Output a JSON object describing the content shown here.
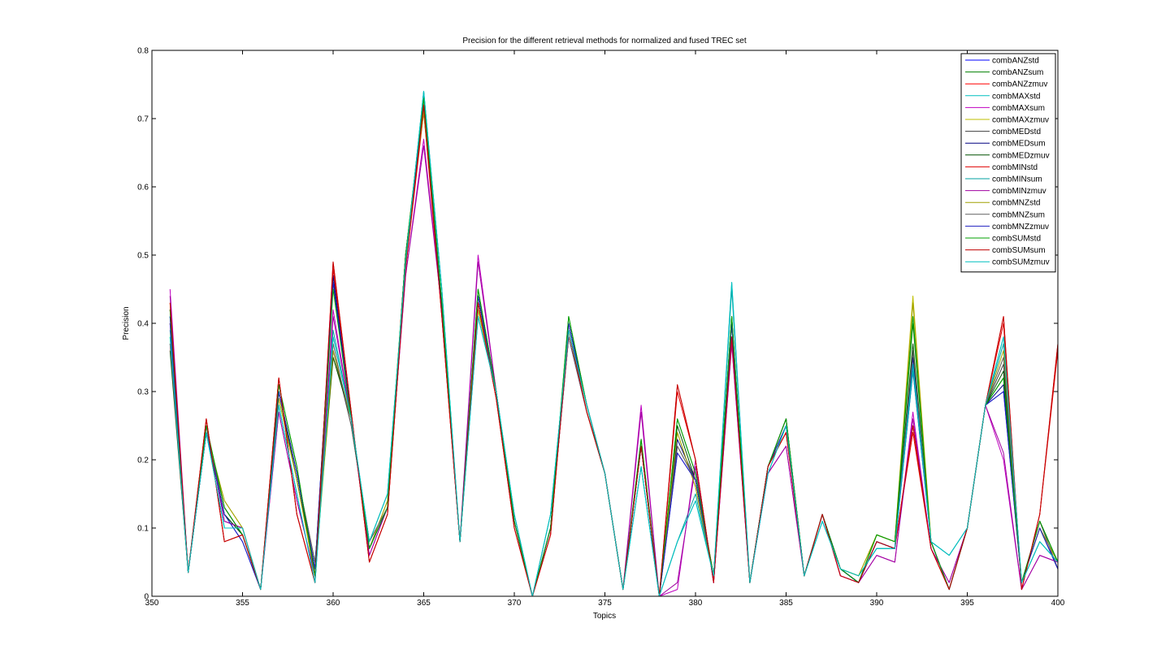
{
  "chart_data": {
    "type": "line",
    "title": "Precision for the different retrieval methods for normalized and fused TREC set",
    "xlabel": "Topics",
    "ylabel": "Precision",
    "xlim": [
      350,
      400
    ],
    "ylim": [
      0,
      0.8
    ],
    "xticks": [
      350,
      355,
      360,
      365,
      370,
      375,
      380,
      385,
      390,
      395,
      400
    ],
    "yticks": [
      0,
      0.1,
      0.2,
      0.3,
      0.4,
      0.5,
      0.6,
      0.7,
      0.8
    ],
    "grid": false,
    "legend_position": "top-right",
    "x": [
      351,
      352,
      353,
      354,
      355,
      356,
      357,
      358,
      359,
      360,
      361,
      362,
      363,
      364,
      365,
      366,
      367,
      368,
      369,
      370,
      371,
      372,
      373,
      374,
      375,
      376,
      377,
      378,
      379,
      380,
      381,
      382,
      383,
      384,
      385,
      386,
      387,
      388,
      389,
      390,
      391,
      392,
      393,
      394,
      395,
      396,
      397,
      398,
      399,
      400
    ],
    "series": [
      {
        "name": "combANZstd",
        "color": "#0000ff",
        "values": [
          0.41,
          0.035,
          0.24,
          0.12,
          0.08,
          0.01,
          0.3,
          0.18,
          0.04,
          0.47,
          0.26,
          0.07,
          0.13,
          0.5,
          0.72,
          0.42,
          0.08,
          0.44,
          0.3,
          0.11,
          0.0,
          0.1,
          0.4,
          0.28,
          0.18,
          0.01,
          0.22,
          0.0,
          0.21,
          0.17,
          0.03,
          0.4,
          0.02,
          0.19,
          0.25,
          0.03,
          0.12,
          0.04,
          0.02,
          0.08,
          0.07,
          0.33,
          0.08,
          0.01,
          0.1,
          0.28,
          0.3,
          0.02,
          0.1,
          0.04
        ]
      },
      {
        "name": "combANZsum",
        "color": "#008000",
        "values": [
          0.42,
          0.035,
          0.25,
          0.13,
          0.09,
          0.01,
          0.31,
          0.19,
          0.03,
          0.46,
          0.26,
          0.07,
          0.13,
          0.5,
          0.73,
          0.43,
          0.08,
          0.45,
          0.3,
          0.11,
          0.0,
          0.1,
          0.41,
          0.28,
          0.18,
          0.01,
          0.23,
          0.0,
          0.26,
          0.18,
          0.03,
          0.41,
          0.02,
          0.19,
          0.26,
          0.03,
          0.12,
          0.04,
          0.02,
          0.09,
          0.08,
          0.4,
          0.08,
          0.01,
          0.1,
          0.28,
          0.32,
          0.02,
          0.11,
          0.05
        ]
      },
      {
        "name": "combANZzmuv",
        "color": "#ff0000",
        "values": [
          0.43,
          0.035,
          0.26,
          0.08,
          0.09,
          0.01,
          0.32,
          0.12,
          0.02,
          0.49,
          0.27,
          0.05,
          0.12,
          0.48,
          0.72,
          0.41,
          0.08,
          0.43,
          0.29,
          0.1,
          0.0,
          0.09,
          0.39,
          0.27,
          0.18,
          0.01,
          0.22,
          0.0,
          0.31,
          0.2,
          0.02,
          0.38,
          0.02,
          0.19,
          0.24,
          0.03,
          0.12,
          0.03,
          0.02,
          0.08,
          0.07,
          0.25,
          0.07,
          0.01,
          0.1,
          0.28,
          0.41,
          0.01,
          0.12,
          0.37
        ]
      },
      {
        "name": "combMAXstd",
        "color": "#00bfbf",
        "values": [
          0.38,
          0.035,
          0.24,
          0.1,
          0.1,
          0.01,
          0.28,
          0.15,
          0.02,
          0.38,
          0.26,
          0.08,
          0.15,
          0.49,
          0.74,
          0.45,
          0.08,
          0.41,
          0.3,
          0.12,
          0.0,
          0.12,
          0.39,
          0.28,
          0.18,
          0.01,
          0.19,
          0.0,
          0.08,
          0.14,
          0.03,
          0.46,
          0.02,
          0.18,
          0.25,
          0.03,
          0.11,
          0.04,
          0.03,
          0.07,
          0.07,
          0.34,
          0.08,
          0.06,
          0.1,
          0.28,
          0.38,
          0.02,
          0.08,
          0.05
        ]
      },
      {
        "name": "combMAXsum",
        "color": "#bf00bf",
        "values": [
          0.45,
          0.035,
          0.25,
          0.11,
          0.1,
          0.01,
          0.27,
          0.14,
          0.03,
          0.42,
          0.26,
          0.06,
          0.13,
          0.47,
          0.67,
          0.42,
          0.08,
          0.5,
          0.3,
          0.11,
          0.0,
          0.1,
          0.38,
          0.27,
          0.18,
          0.01,
          0.28,
          0.0,
          0.01,
          0.2,
          0.02,
          0.37,
          0.02,
          0.18,
          0.22,
          0.03,
          0.12,
          0.03,
          0.02,
          0.06,
          0.05,
          0.27,
          0.07,
          0.02,
          0.1,
          0.28,
          0.2,
          0.01,
          0.06,
          0.05
        ]
      },
      {
        "name": "combMAXzmuv",
        "color": "#bfbf00",
        "values": [
          0.4,
          0.035,
          0.24,
          0.14,
          0.1,
          0.01,
          0.29,
          0.17,
          0.03,
          0.35,
          0.26,
          0.07,
          0.14,
          0.5,
          0.71,
          0.43,
          0.08,
          0.42,
          0.3,
          0.11,
          0.0,
          0.1,
          0.39,
          0.27,
          0.18,
          0.01,
          0.22,
          0.0,
          0.24,
          0.16,
          0.03,
          0.4,
          0.02,
          0.19,
          0.25,
          0.03,
          0.12,
          0.04,
          0.03,
          0.09,
          0.08,
          0.44,
          0.08,
          0.01,
          0.1,
          0.28,
          0.35,
          0.02,
          0.1,
          0.05
        ]
      },
      {
        "name": "combMEDstd",
        "color": "#404040",
        "values": [
          0.37,
          0.035,
          0.24,
          0.13,
          0.09,
          0.01,
          0.3,
          0.18,
          0.05,
          0.36,
          0.25,
          0.08,
          0.13,
          0.5,
          0.72,
          0.42,
          0.08,
          0.43,
          0.3,
          0.11,
          0.0,
          0.1,
          0.38,
          0.27,
          0.18,
          0.01,
          0.22,
          0.0,
          0.22,
          0.17,
          0.03,
          0.4,
          0.02,
          0.19,
          0.26,
          0.03,
          0.12,
          0.04,
          0.02,
          0.08,
          0.07,
          0.36,
          0.08,
          0.01,
          0.1,
          0.28,
          0.34,
          0.02,
          0.11,
          0.04
        ]
      },
      {
        "name": "combMEDsum",
        "color": "#000080",
        "values": [
          0.41,
          0.035,
          0.24,
          0.12,
          0.09,
          0.01,
          0.3,
          0.18,
          0.04,
          0.47,
          0.26,
          0.07,
          0.13,
          0.5,
          0.72,
          0.42,
          0.08,
          0.44,
          0.3,
          0.11,
          0.0,
          0.1,
          0.4,
          0.28,
          0.18,
          0.01,
          0.22,
          0.0,
          0.23,
          0.17,
          0.03,
          0.4,
          0.02,
          0.19,
          0.25,
          0.03,
          0.12,
          0.04,
          0.02,
          0.08,
          0.07,
          0.35,
          0.08,
          0.01,
          0.1,
          0.28,
          0.31,
          0.02,
          0.1,
          0.04
        ]
      },
      {
        "name": "combMEDzmuv",
        "color": "#005000",
        "values": [
          0.36,
          0.035,
          0.24,
          0.12,
          0.09,
          0.01,
          0.3,
          0.17,
          0.04,
          0.35,
          0.26,
          0.07,
          0.13,
          0.5,
          0.72,
          0.42,
          0.08,
          0.44,
          0.3,
          0.11,
          0.0,
          0.1,
          0.4,
          0.28,
          0.18,
          0.01,
          0.22,
          0.0,
          0.25,
          0.17,
          0.03,
          0.41,
          0.02,
          0.19,
          0.26,
          0.03,
          0.12,
          0.04,
          0.02,
          0.09,
          0.08,
          0.37,
          0.08,
          0.01,
          0.1,
          0.28,
          0.33,
          0.02,
          0.11,
          0.05
        ]
      },
      {
        "name": "combMINstd",
        "color": "#e00000",
        "values": [
          0.42,
          0.035,
          0.26,
          0.08,
          0.09,
          0.01,
          0.32,
          0.12,
          0.02,
          0.48,
          0.27,
          0.05,
          0.12,
          0.48,
          0.71,
          0.41,
          0.08,
          0.43,
          0.29,
          0.1,
          0.0,
          0.09,
          0.39,
          0.27,
          0.18,
          0.01,
          0.22,
          0.0,
          0.3,
          0.2,
          0.02,
          0.38,
          0.02,
          0.19,
          0.24,
          0.03,
          0.12,
          0.03,
          0.02,
          0.08,
          0.07,
          0.24,
          0.07,
          0.01,
          0.1,
          0.28,
          0.4,
          0.01,
          0.12,
          0.36
        ]
      },
      {
        "name": "combMINsum",
        "color": "#00a0a0",
        "values": [
          0.39,
          0.035,
          0.24,
          0.1,
          0.1,
          0.01,
          0.28,
          0.15,
          0.02,
          0.39,
          0.26,
          0.08,
          0.15,
          0.49,
          0.74,
          0.45,
          0.08,
          0.41,
          0.3,
          0.12,
          0.0,
          0.12,
          0.39,
          0.28,
          0.18,
          0.01,
          0.19,
          0.0,
          0.08,
          0.15,
          0.03,
          0.45,
          0.02,
          0.18,
          0.25,
          0.03,
          0.11,
          0.04,
          0.03,
          0.07,
          0.07,
          0.33,
          0.08,
          0.06,
          0.1,
          0.28,
          0.37,
          0.02,
          0.08,
          0.05
        ]
      },
      {
        "name": "combMINzmuv",
        "color": "#a000a0",
        "values": [
          0.44,
          0.035,
          0.25,
          0.11,
          0.1,
          0.01,
          0.27,
          0.14,
          0.03,
          0.41,
          0.26,
          0.06,
          0.13,
          0.47,
          0.66,
          0.42,
          0.08,
          0.49,
          0.3,
          0.11,
          0.0,
          0.1,
          0.38,
          0.27,
          0.18,
          0.01,
          0.27,
          0.0,
          0.02,
          0.19,
          0.02,
          0.37,
          0.02,
          0.18,
          0.22,
          0.03,
          0.12,
          0.03,
          0.02,
          0.06,
          0.05,
          0.26,
          0.07,
          0.02,
          0.1,
          0.28,
          0.21,
          0.01,
          0.06,
          0.05
        ]
      },
      {
        "name": "combMNZstd",
        "color": "#a0a000",
        "values": [
          0.4,
          0.035,
          0.24,
          0.14,
          0.1,
          0.01,
          0.29,
          0.17,
          0.03,
          0.36,
          0.26,
          0.07,
          0.14,
          0.5,
          0.71,
          0.43,
          0.08,
          0.42,
          0.3,
          0.11,
          0.0,
          0.1,
          0.39,
          0.27,
          0.18,
          0.01,
          0.22,
          0.0,
          0.24,
          0.16,
          0.03,
          0.4,
          0.02,
          0.19,
          0.25,
          0.03,
          0.12,
          0.04,
          0.03,
          0.09,
          0.08,
          0.43,
          0.08,
          0.01,
          0.1,
          0.28,
          0.36,
          0.02,
          0.1,
          0.05
        ]
      },
      {
        "name": "combMNZsum",
        "color": "#606060",
        "values": [
          0.37,
          0.035,
          0.24,
          0.13,
          0.09,
          0.01,
          0.3,
          0.18,
          0.05,
          0.37,
          0.25,
          0.08,
          0.13,
          0.5,
          0.72,
          0.42,
          0.08,
          0.43,
          0.3,
          0.11,
          0.0,
          0.1,
          0.38,
          0.27,
          0.18,
          0.01,
          0.22,
          0.0,
          0.22,
          0.17,
          0.03,
          0.4,
          0.02,
          0.19,
          0.26,
          0.03,
          0.12,
          0.04,
          0.02,
          0.08,
          0.07,
          0.36,
          0.08,
          0.01,
          0.1,
          0.28,
          0.35,
          0.02,
          0.11,
          0.04
        ]
      },
      {
        "name": "combMNZzmuv",
        "color": "#2020c0",
        "values": [
          0.4,
          0.035,
          0.24,
          0.12,
          0.08,
          0.01,
          0.3,
          0.18,
          0.04,
          0.46,
          0.26,
          0.07,
          0.13,
          0.5,
          0.72,
          0.42,
          0.08,
          0.44,
          0.3,
          0.11,
          0.0,
          0.1,
          0.4,
          0.28,
          0.18,
          0.01,
          0.22,
          0.0,
          0.21,
          0.17,
          0.03,
          0.4,
          0.02,
          0.19,
          0.25,
          0.03,
          0.12,
          0.04,
          0.02,
          0.08,
          0.07,
          0.34,
          0.08,
          0.01,
          0.1,
          0.28,
          0.3,
          0.02,
          0.1,
          0.04
        ]
      },
      {
        "name": "combSUMstd",
        "color": "#00a000",
        "values": [
          0.42,
          0.035,
          0.25,
          0.13,
          0.09,
          0.01,
          0.31,
          0.19,
          0.03,
          0.45,
          0.26,
          0.07,
          0.13,
          0.5,
          0.73,
          0.43,
          0.08,
          0.45,
          0.3,
          0.11,
          0.0,
          0.1,
          0.41,
          0.28,
          0.18,
          0.01,
          0.23,
          0.0,
          0.26,
          0.18,
          0.03,
          0.41,
          0.02,
          0.19,
          0.26,
          0.03,
          0.12,
          0.04,
          0.02,
          0.09,
          0.08,
          0.41,
          0.08,
          0.01,
          0.1,
          0.28,
          0.32,
          0.02,
          0.11,
          0.05
        ]
      },
      {
        "name": "combSUMsum",
        "color": "#c00000",
        "values": [
          0.43,
          0.035,
          0.26,
          0.08,
          0.09,
          0.01,
          0.32,
          0.12,
          0.02,
          0.49,
          0.27,
          0.05,
          0.12,
          0.48,
          0.72,
          0.41,
          0.08,
          0.43,
          0.29,
          0.1,
          0.0,
          0.09,
          0.39,
          0.27,
          0.18,
          0.01,
          0.22,
          0.0,
          0.31,
          0.2,
          0.02,
          0.38,
          0.02,
          0.19,
          0.24,
          0.03,
          0.12,
          0.03,
          0.02,
          0.08,
          0.07,
          0.25,
          0.07,
          0.01,
          0.1,
          0.28,
          0.41,
          0.01,
          0.12,
          0.37
        ]
      },
      {
        "name": "combSUMzmuv",
        "color": "#00c0c0",
        "values": [
          0.38,
          0.035,
          0.24,
          0.1,
          0.1,
          0.01,
          0.28,
          0.15,
          0.02,
          0.38,
          0.26,
          0.08,
          0.15,
          0.49,
          0.74,
          0.45,
          0.08,
          0.41,
          0.3,
          0.12,
          0.0,
          0.12,
          0.39,
          0.28,
          0.18,
          0.01,
          0.19,
          0.0,
          0.08,
          0.14,
          0.03,
          0.46,
          0.02,
          0.18,
          0.25,
          0.03,
          0.11,
          0.04,
          0.03,
          0.07,
          0.07,
          0.34,
          0.08,
          0.06,
          0.1,
          0.28,
          0.38,
          0.02,
          0.08,
          0.05
        ]
      }
    ]
  }
}
